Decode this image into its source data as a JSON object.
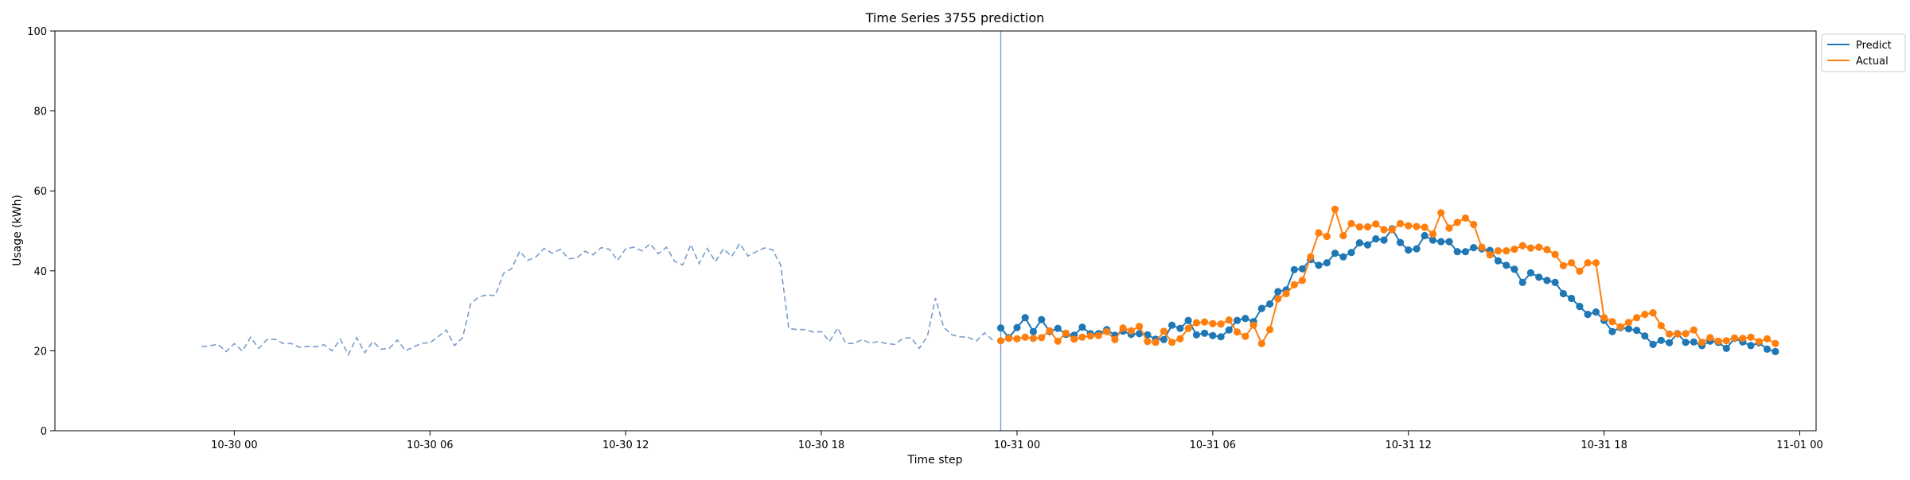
{
  "chart_data": {
    "type": "line",
    "title": "Time Series 3755 prediction",
    "xlabel": "Time step",
    "ylabel": "Usage (kWh)",
    "ylim": [
      0,
      100
    ],
    "yticks": [
      0,
      20,
      40,
      60,
      80,
      100
    ],
    "xlim_hours": [
      -5.5,
      48.5
    ],
    "xticks": [
      {
        "hour": 0,
        "label": "10-30 00"
      },
      {
        "hour": 6,
        "label": "10-30 06"
      },
      {
        "hour": 12,
        "label": "10-30 12"
      },
      {
        "hour": 18,
        "label": "10-30 18"
      },
      {
        "hour": 24,
        "label": "10-31 00"
      },
      {
        "hour": 30,
        "label": "10-31 06"
      },
      {
        "hour": 36,
        "label": "10-31 12"
      },
      {
        "hour": 42,
        "label": "10-31 18"
      },
      {
        "hour": 48,
        "label": "11-01 00"
      }
    ],
    "grid": false,
    "legend_position": "outside-top-right",
    "forecast_start_hour": 23.5,
    "history": {
      "start_hour": -1,
      "step_hours": 0.25,
      "style": "dashed",
      "color": "#7b9cc9",
      "values": [
        21,
        21.3,
        21.6,
        19.8,
        21.8,
        19.9,
        23.4,
        20.6,
        22.8,
        22.9,
        21.8,
        21.8,
        20.9,
        21.1,
        21,
        21.5,
        20,
        22.9,
        19,
        23.3,
        19.5,
        22.3,
        20.4,
        20.6,
        22.7,
        20,
        21,
        21.9,
        22,
        23.5,
        25.2,
        21.3,
        23.3,
        31.8,
        33.5,
        34,
        33.8,
        39.3,
        40.5,
        44.9,
        42.6,
        43.5,
        45.6,
        44.4,
        45.4,
        43,
        43.2,
        44.9,
        44,
        45.8,
        45.4,
        42.6,
        45.5,
        45.9,
        45,
        46.8,
        44.3,
        45.9,
        42.4,
        41.5,
        46.6,
        41.8,
        45.6,
        42.3,
        45.5,
        43.6,
        46.8,
        43.7,
        44.8,
        45.7,
        45.3,
        41.5,
        25.6,
        25.3,
        25.3,
        24.7,
        24.8,
        22.3,
        25.7,
        21.9,
        21.8,
        22.8,
        21.9,
        22.3,
        21.8,
        21.6,
        23.1,
        23.3,
        20.6,
        23.6,
        33.2,
        25.9,
        24,
        23.5,
        23.4,
        22.4,
        24.5,
        22.7
      ]
    },
    "series": [
      {
        "name": "Predict",
        "color": "#1f77b4",
        "start_hour": 23.5,
        "step_hours": 0.25,
        "values": [
          25.7,
          23.3,
          25.8,
          28.3,
          24.8,
          27.8,
          24.8,
          25.6,
          24.1,
          23.9,
          25.9,
          24.3,
          24.3,
          25.3,
          23.9,
          24.9,
          24.1,
          24.3,
          24,
          22.9,
          22.8,
          26.4,
          25.6,
          27.6,
          24,
          24.4,
          23.8,
          23.5,
          25.2,
          27.6,
          28.1,
          27.3,
          30.6,
          31.7,
          34.8,
          35.2,
          40.3,
          40.5,
          42.8,
          41.4,
          42,
          44.4,
          43.5,
          44.6,
          47,
          46.5,
          48,
          47.7,
          50.5,
          47.1,
          45.2,
          45.5,
          48.8,
          47.7,
          47.3,
          47.3,
          44.8,
          44.8,
          45.8,
          45.5,
          45.1,
          42.5,
          41.4,
          40.4,
          37.1,
          39.5,
          38.4,
          37.6,
          37.1,
          34.3,
          33.1,
          31.1,
          29.1,
          29.7,
          27.6,
          24.8,
          25.8,
          25.5,
          25.1,
          23.7,
          21.6,
          22.6,
          22,
          24.3,
          22.1,
          22.2,
          21.3,
          22.4,
          22.1,
          20.6,
          23.1,
          22.2,
          21.3,
          22,
          20.4,
          19.8
        ]
      },
      {
        "name": "Actual",
        "color": "#ff7f0e",
        "start_hour": 23.5,
        "step_hours": 0.25,
        "values": [
          22.5,
          23.1,
          23,
          23.4,
          23.1,
          23.3,
          25,
          22.4,
          24.4,
          22.9,
          23.4,
          23.7,
          23.8,
          24.8,
          22.8,
          25.7,
          25,
          26.1,
          22.3,
          22.1,
          24.9,
          22.1,
          23,
          25.6,
          27,
          27.2,
          26.8,
          26.7,
          27.7,
          24.7,
          23.6,
          26.4,
          21.8,
          25.3,
          33,
          34.3,
          36.5,
          37.6,
          43.5,
          49.5,
          48.6,
          55.4,
          48.8,
          51.8,
          51,
          51,
          51.7,
          50.3,
          50.3,
          51.8,
          51.3,
          51.1,
          50.9,
          49.2,
          54.5,
          50.7,
          52.1,
          53.2,
          51.6,
          45.9,
          44,
          45,
          45,
          45.4,
          46.3,
          45.7,
          45.9,
          45.3,
          44.1,
          41.3,
          42,
          39.9,
          42,
          42,
          28.3,
          27.3,
          26,
          27.1,
          28.3,
          29.1,
          29.5,
          26.3,
          24.2,
          24.2,
          24.3,
          25.2,
          22.1,
          23.3,
          22.4,
          22.5,
          23.2,
          23.1,
          23.4,
          22.3,
          23,
          21.8
        ]
      }
    ]
  }
}
